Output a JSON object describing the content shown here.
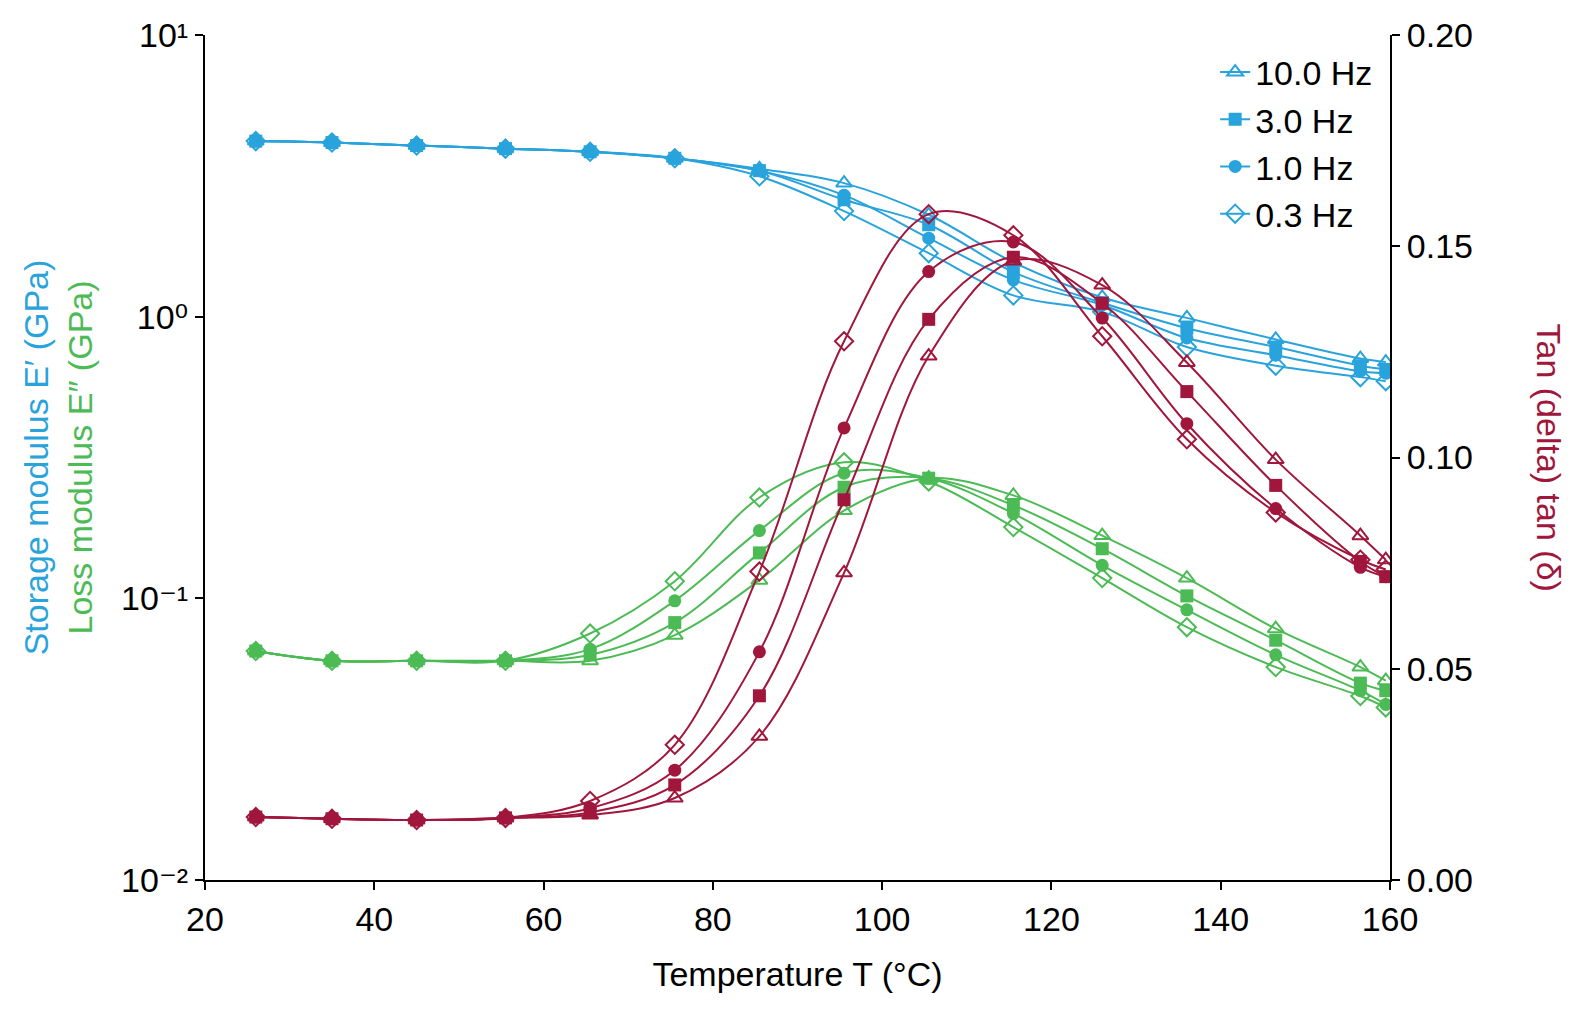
{
  "chart_data": {
    "type": "line",
    "xlabel": "Temperature T (°C)",
    "ylabel": [
      {
        "text": "Storage modulus E′ (GPa)",
        "color": "#29a3dc"
      },
      {
        "text": "Loss modulus E″ (GPa)",
        "color": "#4cbb55"
      }
    ],
    "y2label": {
      "text": "Tan (delta) tan (δ)",
      "color": "#a0163c"
    },
    "x": [
      26,
      35,
      45,
      55.5,
      65.5,
      75.5,
      85.5,
      95.5,
      105.5,
      115.5,
      126,
      136,
      146.5,
      156.5,
      159.5
    ],
    "xlim": [
      20,
      160
    ],
    "xticks": [
      20,
      40,
      60,
      80,
      100,
      120,
      140,
      160
    ],
    "log": "y",
    "ylim": [
      0.01,
      10
    ],
    "yticks": [
      {
        "value": 0.01,
        "label": "10⁻²"
      },
      {
        "value": 0.1,
        "label": "10⁻¹"
      },
      {
        "value": 1,
        "label": "10⁰"
      },
      {
        "value": 10,
        "label": "10¹"
      }
    ],
    "y2lim": [
      0,
      0.2
    ],
    "y2ticks": [
      {
        "value": 0,
        "label": "0.00"
      },
      {
        "value": 0.05,
        "label": "0.05"
      },
      {
        "value": 0.1,
        "label": "0.10"
      },
      {
        "value": 0.15,
        "label": "0.15"
      },
      {
        "value": 0.2,
        "label": "0.20"
      }
    ],
    "grid": false,
    "legend": "top right",
    "series": [
      {
        "name": "10.0 Hz",
        "color": "#29a3dc",
        "marker": "triangle-up-open",
        "line_style": "solid",
        "values": [
          4.2,
          4.15,
          4.05,
          3.95,
          3.85,
          3.65,
          3.35,
          2.98,
          2.3,
          1.56,
          1.17,
          0.99,
          0.83,
          0.71,
          0.69
        ]
      },
      {
        "name": "3.0 Hz",
        "color": "#29a3dc",
        "marker": "square",
        "line_style": "solid",
        "values": [
          4.2,
          4.15,
          4.05,
          3.95,
          3.85,
          3.65,
          3.3,
          2.6,
          2.12,
          1.44,
          1.12,
          0.91,
          0.78,
          0.67,
          0.65
        ]
      },
      {
        "name": "1.0 Hz",
        "color": "#29a3dc",
        "marker": "circle",
        "line_style": "solid",
        "values": [
          4.2,
          4.15,
          4.05,
          3.95,
          3.85,
          3.65,
          3.3,
          2.7,
          1.9,
          1.35,
          1.1,
          0.84,
          0.73,
          0.64,
          0.63
        ]
      },
      {
        "name": "0.3 Hz",
        "color": "#29a3dc",
        "marker": "diamond-open",
        "line_style": "solid",
        "values": [
          4.2,
          4.15,
          4.05,
          3.95,
          3.85,
          3.65,
          3.15,
          2.37,
          1.68,
          1.19,
          1.04,
          0.78,
          0.67,
          0.61,
          0.59
        ]
      },
      {
        "name": "10.0 Hz",
        "color": "#4cbb55",
        "marker": "triangle-up-open",
        "line_style": "solid",
        "values": [
          0.065,
          0.06,
          0.06,
          0.06,
          0.06,
          0.074,
          0.116,
          0.205,
          0.267,
          0.232,
          0.167,
          0.118,
          0.078,
          0.057,
          0.051
        ]
      },
      {
        "name": "3.0 Hz",
        "color": "#4cbb55",
        "marker": "square",
        "line_style": "solid",
        "values": [
          0.065,
          0.06,
          0.06,
          0.06,
          0.063,
          0.082,
          0.145,
          0.248,
          0.267,
          0.214,
          0.15,
          0.102,
          0.071,
          0.05,
          0.047
        ]
      },
      {
        "name": "1.0 Hz",
        "color": "#4cbb55",
        "marker": "circle",
        "line_style": "solid",
        "values": [
          0.065,
          0.06,
          0.06,
          0.06,
          0.066,
          0.098,
          0.174,
          0.278,
          0.267,
          0.2,
          0.131,
          0.091,
          0.063,
          0.047,
          0.042
        ]
      },
      {
        "name": "0.3 Hz",
        "color": "#4cbb55",
        "marker": "diamond-open",
        "line_style": "solid",
        "values": [
          0.065,
          0.06,
          0.06,
          0.06,
          0.075,
          0.115,
          0.228,
          0.304,
          0.26,
          0.179,
          0.118,
          0.079,
          0.057,
          0.045,
          0.041
        ]
      },
      {
        "name": "10.0 Hz",
        "color": "#a0163c",
        "marker": "triangle-up-open",
        "line_style": "solid",
        "axis": "y2",
        "values": [
          0.0149,
          0.0145,
          0.0142,
          0.0147,
          0.0154,
          0.0194,
          0.034,
          0.0727,
          0.124,
          0.1465,
          0.1408,
          0.1225,
          0.0995,
          0.0815,
          0.0758
        ]
      },
      {
        "name": "3.0 Hz",
        "color": "#a0163c",
        "marker": "square",
        "line_style": "solid",
        "axis": "y2",
        "values": [
          0.0149,
          0.0145,
          0.0142,
          0.0147,
          0.016,
          0.0225,
          0.0436,
          0.09,
          0.1327,
          0.1474,
          0.1365,
          0.1156,
          0.0934,
          0.0754,
          0.0718
        ]
      },
      {
        "name": "1.0 Hz",
        "color": "#a0163c",
        "marker": "circle",
        "line_style": "solid",
        "axis": "y2",
        "values": [
          0.0149,
          0.0145,
          0.0142,
          0.0147,
          0.017,
          0.026,
          0.054,
          0.107,
          0.144,
          0.151,
          0.133,
          0.108,
          0.0879,
          0.074,
          0.0718
        ]
      },
      {
        "name": "0.3 Hz",
        "color": "#a0163c",
        "marker": "diamond-open",
        "line_style": "solid",
        "axis": "y2",
        "values": [
          0.0149,
          0.0145,
          0.0142,
          0.0147,
          0.0187,
          0.032,
          0.073,
          0.1275,
          0.1576,
          0.1526,
          0.1287,
          0.1043,
          0.087,
          0.0758,
          0.0735
        ]
      }
    ]
  }
}
